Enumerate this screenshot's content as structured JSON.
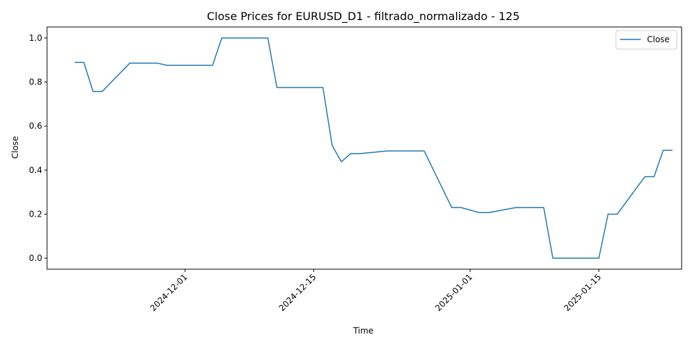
{
  "chart_data": {
    "type": "line",
    "title": "Close Prices for EURUSD_D1 - filtrado_normalizado - 125",
    "xlabel": "Time",
    "ylabel": "Close",
    "legend": {
      "placement": "top-right",
      "entries": [
        "Close"
      ]
    },
    "grid": false,
    "line_color": "#1f77b4",
    "xlim": [
      "2024-11-16",
      "2025-01-24"
    ],
    "ylim": [
      -0.05,
      1.05
    ],
    "x_ticks": [
      "2024-12-01",
      "2024-12-15",
      "2025-01-01",
      "2025-01-15"
    ],
    "y_ticks": [
      "0.0",
      "0.2",
      "0.4",
      "0.6",
      "0.8",
      "1.0"
    ],
    "series": [
      {
        "name": "Close",
        "x": [
          "2024-11-19",
          "2024-11-20",
          "2024-11-21",
          "2024-11-22",
          "2024-11-25",
          "2024-11-26",
          "2024-11-27",
          "2024-11-28",
          "2024-11-29",
          "2024-12-02",
          "2024-12-03",
          "2024-12-04",
          "2024-12-05",
          "2024-12-06",
          "2024-12-09",
          "2024-12-10",
          "2024-12-11",
          "2024-12-12",
          "2024-12-13",
          "2024-12-16",
          "2024-12-17",
          "2024-12-18",
          "2024-12-19",
          "2024-12-20",
          "2024-12-23",
          "2024-12-24",
          "2024-12-26",
          "2024-12-27",
          "2024-12-30",
          "2024-12-31",
          "2025-01-02",
          "2025-01-03",
          "2025-01-06",
          "2025-01-07",
          "2025-01-08",
          "2025-01-09",
          "2025-01-10",
          "2025-01-13",
          "2025-01-14",
          "2025-01-15",
          "2025-01-16",
          "2025-01-17",
          "2025-01-20",
          "2025-01-21",
          "2025-01-22",
          "2025-01-23"
        ],
        "y": [
          0.889,
          0.889,
          0.757,
          0.757,
          0.886,
          0.886,
          0.886,
          0.886,
          0.876,
          0.876,
          0.876,
          0.876,
          1.0,
          1.0,
          1.0,
          1.0,
          0.775,
          0.775,
          0.775,
          0.775,
          0.512,
          0.438,
          0.475,
          0.475,
          0.487,
          0.487,
          0.487,
          0.487,
          0.23,
          0.23,
          0.207,
          0.207,
          0.23,
          0.23,
          0.23,
          0.23,
          0.0,
          0.0,
          0.0,
          0.0,
          0.2,
          0.2,
          0.37,
          0.37,
          0.49,
          0.49
        ]
      }
    ]
  }
}
